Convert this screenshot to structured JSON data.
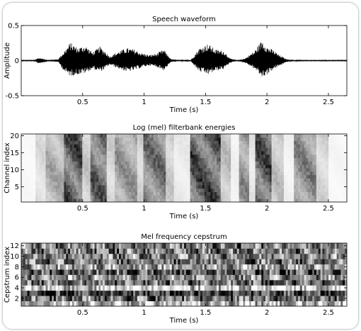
{
  "chart_data": [
    {
      "type": "line",
      "title": "Speech waveform",
      "xlabel": "Time (s)",
      "ylabel": "Amplitude",
      "xlim": [
        0,
        2.65
      ],
      "ylim": [
        -0.5,
        0.5
      ],
      "xticks": [
        0.5,
        1,
        1.5,
        2,
        2.5
      ],
      "xtick_labels": [
        "0.5",
        "1",
        "1.5",
        "2",
        "2.5"
      ],
      "yticks": [
        -0.5,
        0,
        0.5
      ],
      "ytick_labels": [
        "-0.5",
        "0",
        "0.5"
      ],
      "grid": false,
      "envelope": {
        "times": [
          0,
          0.1,
          0.14,
          0.17,
          0.22,
          0.3,
          0.36,
          0.4,
          0.46,
          0.52,
          0.58,
          0.64,
          0.68,
          0.72,
          0.8,
          0.86,
          0.92,
          0.98,
          1.04,
          1.1,
          1.16,
          1.22,
          1.32,
          1.38,
          1.45,
          1.52,
          1.58,
          1.65,
          1.7,
          1.76,
          1.82,
          1.9,
          1.96,
          2.0,
          2.06,
          2.1,
          2.16,
          2.22,
          2.28,
          2.36,
          2.44,
          2.52,
          2.6,
          2.65
        ],
        "upper": [
          0.005,
          0.005,
          0.04,
          0.03,
          0.01,
          0.02,
          0.16,
          0.26,
          0.18,
          0.22,
          0.12,
          0.2,
          0.14,
          0.06,
          0.14,
          0.18,
          0.16,
          0.11,
          0.08,
          0.1,
          0.16,
          0.02,
          0.005,
          0.01,
          0.18,
          0.24,
          0.16,
          0.14,
          0.03,
          0.005,
          0.03,
          0.14,
          0.3,
          0.2,
          0.14,
          0.08,
          0.02,
          0.01,
          0.005,
          0.005,
          0.005,
          0.005,
          0.005,
          0.005
        ],
        "lower": [
          -0.005,
          -0.005,
          -0.04,
          -0.03,
          -0.01,
          -0.02,
          -0.18,
          -0.22,
          -0.2,
          -0.18,
          -0.12,
          -0.16,
          -0.12,
          -0.06,
          -0.12,
          -0.16,
          -0.14,
          -0.1,
          -0.07,
          -0.09,
          -0.14,
          -0.02,
          -0.005,
          -0.01,
          -0.16,
          -0.2,
          -0.15,
          -0.12,
          -0.03,
          -0.005,
          -0.03,
          -0.12,
          -0.24,
          -0.2,
          -0.12,
          -0.08,
          -0.02,
          -0.01,
          -0.005,
          -0.005,
          -0.005,
          -0.005,
          -0.005,
          -0.005
        ]
      }
    },
    {
      "type": "heatmap",
      "title": "Log (mel) filterbank energies",
      "xlabel": "Time (s)",
      "ylabel": "Channel index",
      "xlim": [
        0,
        2.65
      ],
      "ylim": [
        0.5,
        20.5
      ],
      "xticks": [
        0.5,
        1,
        1.5,
        2,
        2.5
      ],
      "xtick_labels": [
        "0.5",
        "1",
        "1.5",
        "2",
        "2.5"
      ],
      "yticks": [
        5,
        10,
        15,
        20
      ],
      "ytick_labels": [
        "5",
        "10",
        "15",
        "20"
      ],
      "colormap": "gray-reversed",
      "rows": 20,
      "frames": 160,
      "segments": [
        {
          "start": 0.0,
          "end": 0.12,
          "level": 0.04
        },
        {
          "start": 0.12,
          "end": 0.2,
          "level": 0.2
        },
        {
          "start": 0.2,
          "end": 0.34,
          "level": 0.45
        },
        {
          "start": 0.34,
          "end": 0.5,
          "level": 0.95
        },
        {
          "start": 0.5,
          "end": 0.56,
          "level": 0.3
        },
        {
          "start": 0.56,
          "end": 0.7,
          "level": 0.85
        },
        {
          "start": 0.7,
          "end": 0.76,
          "level": 0.25
        },
        {
          "start": 0.76,
          "end": 0.94,
          "level": 0.55
        },
        {
          "start": 0.94,
          "end": 1.0,
          "level": 0.25
        },
        {
          "start": 1.0,
          "end": 1.18,
          "level": 0.75
        },
        {
          "start": 1.18,
          "end": 1.24,
          "level": 0.3
        },
        {
          "start": 1.24,
          "end": 1.38,
          "level": 0.12
        },
        {
          "start": 1.38,
          "end": 1.62,
          "level": 0.95
        },
        {
          "start": 1.62,
          "end": 1.7,
          "level": 0.35
        },
        {
          "start": 1.7,
          "end": 1.78,
          "level": 0.08
        },
        {
          "start": 1.78,
          "end": 1.86,
          "level": 0.6
        },
        {
          "start": 1.86,
          "end": 1.9,
          "level": 0.15
        },
        {
          "start": 1.9,
          "end": 2.04,
          "level": 0.95
        },
        {
          "start": 2.04,
          "end": 2.14,
          "level": 0.35
        },
        {
          "start": 2.14,
          "end": 2.22,
          "level": 0.08
        },
        {
          "start": 2.22,
          "end": 2.4,
          "level": 0.65
        },
        {
          "start": 2.4,
          "end": 2.5,
          "level": 0.25
        },
        {
          "start": 2.5,
          "end": 2.65,
          "level": 0.05
        }
      ]
    },
    {
      "type": "heatmap",
      "title": "Mel frequency cepstrum",
      "xlabel": "Time (s)",
      "ylabel": "Cepstrum index",
      "xlim": [
        0,
        2.65
      ],
      "ylim": [
        0.5,
        12.5
      ],
      "xticks": [
        0.5,
        1,
        1.5,
        2,
        2.5
      ],
      "xtick_labels": [
        "0.5",
        "1",
        "1.5",
        "2",
        "2.5"
      ],
      "yticks": [
        2,
        4,
        6,
        8,
        10,
        12
      ],
      "ytick_labels": [
        "2",
        "4",
        "6",
        "8",
        "10",
        "12"
      ],
      "colormap": "gray",
      "rows": 12,
      "frames": 160,
      "row_bias": [
        0.25,
        0.55,
        0.75,
        0.2,
        0.6,
        0.45,
        0.65,
        0.4,
        0.55,
        0.5,
        0.55,
        0.5
      ]
    }
  ]
}
